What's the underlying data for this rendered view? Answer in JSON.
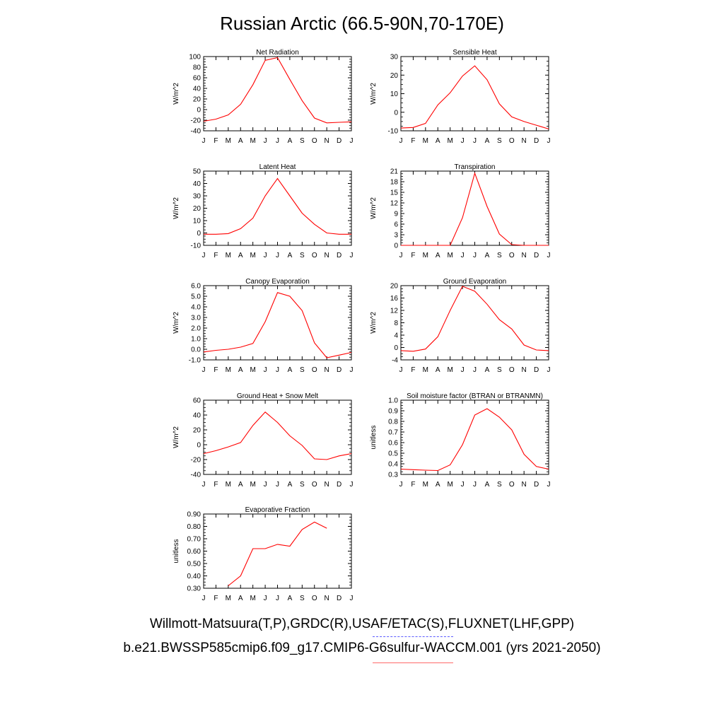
{
  "title": "Russian Arctic (66.5-90N,70-170E)",
  "footer": {
    "observations": "Willmott-Matsuura(T,P),GRDC(R),USAF/ETAC(S),FLUXNET(LHF,GPP)",
    "case": "b.e21.BWSSP585cmip6.f09_g17.CMIP6-G6sulfur-WACCM.001 (yrs 2021-2050)"
  },
  "colors": {
    "series": "#ff0000",
    "obs_legend": "#5b5bff",
    "case_legend": "#ff6a6a"
  },
  "chart_data": [
    {
      "type": "line",
      "title": "Net Radiation",
      "ylabel": "W/m^2",
      "categories": [
        "J",
        "F",
        "M",
        "A",
        "M",
        "J",
        "J",
        "A",
        "S",
        "O",
        "N",
        "D",
        "J"
      ],
      "ylim": [
        -40,
        100
      ],
      "yticks": [
        "100",
        "80",
        "60",
        "40",
        "20",
        "0",
        "-20",
        "-40"
      ],
      "ytick_values": [
        100,
        80,
        60,
        40,
        20,
        0,
        -20,
        -40
      ],
      "series": [
        {
          "values": [
            -22,
            -18,
            -10,
            10,
            47,
            93,
            98,
            57,
            17,
            -16,
            -25,
            -24,
            -23
          ]
        }
      ]
    },
    {
      "type": "line",
      "title": "Sensible Heat",
      "ylabel": "W/m^2",
      "categories": [
        "J",
        "F",
        "M",
        "A",
        "M",
        "J",
        "J",
        "A",
        "S",
        "O",
        "N",
        "D",
        "J"
      ],
      "ylim": [
        -10,
        30
      ],
      "yticks": [
        "30",
        "20",
        "10",
        "0",
        "-10"
      ],
      "ytick_values": [
        30,
        20,
        10,
        0,
        -10
      ],
      "series": [
        {
          "values": [
            -8.5,
            -8.2,
            -6,
            4,
            10.5,
            19.5,
            25,
            17.5,
            4.5,
            -2.5,
            -5,
            -7,
            -9
          ]
        }
      ]
    },
    {
      "type": "line",
      "title": "Latent Heat",
      "ylabel": "W/m^2",
      "categories": [
        "J",
        "F",
        "M",
        "A",
        "M",
        "J",
        "J",
        "A",
        "S",
        "O",
        "N",
        "D",
        "J"
      ],
      "ylim": [
        -10,
        50
      ],
      "yticks": [
        "50",
        "40",
        "30",
        "20",
        "10",
        "0",
        "-10"
      ],
      "ytick_values": [
        50,
        40,
        30,
        20,
        10,
        0,
        -10
      ],
      "series": [
        {
          "values": [
            -1,
            -1,
            -0.5,
            3.5,
            12,
            30,
            44,
            30,
            16,
            7,
            0,
            -1,
            -1
          ]
        }
      ]
    },
    {
      "type": "line",
      "title": "Transpiration",
      "ylabel": "W/m^2",
      "categories": [
        "J",
        "F",
        "M",
        "A",
        "M",
        "J",
        "J",
        "A",
        "S",
        "O",
        "N",
        "D",
        "J"
      ],
      "ylim": [
        0,
        21
      ],
      "yticks": [
        "21",
        "18",
        "15",
        "12",
        "9",
        "6",
        "3",
        "0"
      ],
      "ytick_values": [
        21,
        18,
        15,
        12,
        9,
        6,
        3,
        0
      ],
      "series": [
        {
          "values": [
            0,
            0,
            0,
            0,
            0,
            7.8,
            20.4,
            11,
            3.2,
            0.2,
            0,
            0,
            0
          ]
        }
      ]
    },
    {
      "type": "line",
      "title": "Canopy Evaporation",
      "ylabel": "W/m^2",
      "categories": [
        "J",
        "F",
        "M",
        "A",
        "M",
        "J",
        "J",
        "A",
        "S",
        "O",
        "N",
        "D",
        "J"
      ],
      "ylim": [
        -1,
        6
      ],
      "yticks": [
        "6.0",
        "5.0",
        "4.0",
        "3.0",
        "2.0",
        "1.0",
        "0.0",
        "-1.0"
      ],
      "ytick_values": [
        6,
        5,
        4,
        3,
        2,
        1,
        0,
        -1
      ],
      "series": [
        {
          "values": [
            -0.25,
            -0.1,
            0,
            0.2,
            0.55,
            2.6,
            5.35,
            5,
            3.65,
            0.6,
            -0.8,
            -0.55,
            -0.3
          ]
        }
      ]
    },
    {
      "type": "line",
      "title": "Ground Evaporation",
      "ylabel": "W/m^2",
      "categories": [
        "J",
        "F",
        "M",
        "A",
        "M",
        "J",
        "J",
        "A",
        "S",
        "O",
        "N",
        "D",
        "J"
      ],
      "ylim": [
        -4,
        20
      ],
      "yticks": [
        "20",
        "16",
        "12",
        "8",
        "4",
        "0",
        "-4"
      ],
      "ytick_values": [
        20,
        16,
        12,
        8,
        4,
        0,
        -4
      ],
      "series": [
        {
          "values": [
            -1,
            -1.2,
            -0.5,
            3.5,
            12,
            19.8,
            18.2,
            14,
            9,
            6,
            0.8,
            -0.8,
            -1
          ]
        }
      ]
    },
    {
      "type": "line",
      "title": "Ground Heat + Snow Melt",
      "ylabel": "W/m^2",
      "categories": [
        "J",
        "F",
        "M",
        "A",
        "M",
        "J",
        "J",
        "A",
        "S",
        "O",
        "N",
        "D",
        "J"
      ],
      "ylim": [
        -40,
        60
      ],
      "yticks": [
        "60",
        "40",
        "20",
        "0",
        "-20",
        "-40"
      ],
      "ytick_values": [
        60,
        40,
        20,
        0,
        -20,
        -40
      ],
      "series": [
        {
          "values": [
            -12,
            -8,
            -3,
            3,
            26,
            44,
            30,
            12,
            -1,
            -19,
            -20,
            -15,
            -12
          ]
        }
      ]
    },
    {
      "type": "line",
      "title": "Soil moisture factor (BTRAN or BTRANMN)",
      "ylabel": "unitless",
      "categories": [
        "J",
        "F",
        "M",
        "A",
        "M",
        "J",
        "J",
        "A",
        "S",
        "O",
        "N",
        "D",
        "J"
      ],
      "ylim": [
        0.3,
        1.0
      ],
      "yticks": [
        "1.0",
        "0.9",
        "0.8",
        "0.7",
        "0.6",
        "0.5",
        "0.4",
        "0.3"
      ],
      "ytick_values": [
        1.0,
        0.9,
        0.8,
        0.7,
        0.6,
        0.5,
        0.4,
        0.3
      ],
      "series": [
        {
          "values": [
            0.35,
            0.345,
            0.34,
            0.337,
            0.39,
            0.58,
            0.86,
            0.92,
            0.84,
            0.72,
            0.49,
            0.375,
            0.35
          ]
        }
      ]
    },
    {
      "type": "line",
      "title": "Evaporative Fraction",
      "ylabel": "unitless",
      "categories": [
        "J",
        "F",
        "M",
        "A",
        "M",
        "J",
        "J",
        "A",
        "S",
        "O",
        "N",
        "D",
        "J"
      ],
      "ylim": [
        0.3,
        0.9
      ],
      "yticks": [
        "0.90",
        "0.80",
        "0.70",
        "0.60",
        "0.50",
        "0.40",
        "0.30"
      ],
      "ytick_values": [
        0.9,
        0.8,
        0.7,
        0.6,
        0.5,
        0.4,
        0.3
      ],
      "series": [
        {
          "values": [
            null,
            null,
            0.32,
            0.4,
            0.62,
            0.62,
            0.655,
            0.64,
            0.775,
            0.835,
            0.785,
            null,
            null
          ]
        }
      ]
    }
  ]
}
